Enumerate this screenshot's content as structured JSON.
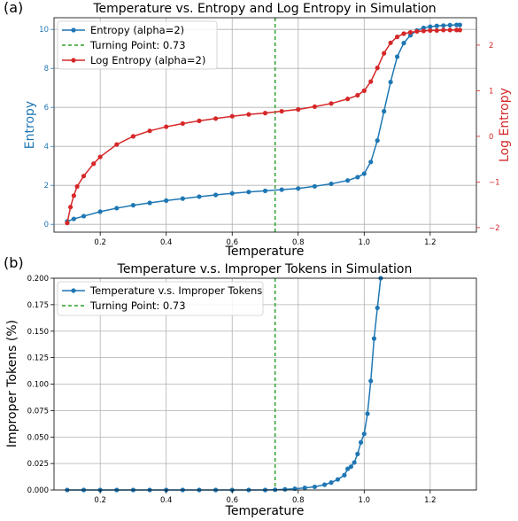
{
  "figure": {
    "panel_a_label": "(a)",
    "panel_b_label": "(b)"
  },
  "chart_data": [
    {
      "type": "line",
      "title": "Temperature vs. Entropy and Log Entropy in Simulation",
      "xlabel": "Temperature",
      "ylabel": "Entropy",
      "ylabel_right": "Log Entropy",
      "xlim": [
        0.06,
        1.34
      ],
      "ylim": [
        -0.4,
        10.6
      ],
      "ylim_right": [
        -2.1,
        2.6
      ],
      "xticks": [
        0.2,
        0.4,
        0.6,
        0.8,
        1.0,
        1.2
      ],
      "yticks": [
        0,
        2,
        4,
        6,
        8,
        10
      ],
      "yticks_right": [
        -2,
        -1,
        0,
        1,
        2
      ],
      "grid": true,
      "legend_position": "top-left",
      "vline": {
        "x": 0.73,
        "label": "Turning Point: 0.73",
        "color": "#2ca02c",
        "style": "dashed"
      },
      "colors": {
        "entropy": "#1f77b4",
        "log_entropy": "#d62728",
        "right_axis": "#d62728",
        "left_label": "#1f77b4"
      },
      "series": [
        {
          "name": "Entropy (alpha=2)",
          "axis": "left",
          "x": [
            0.1,
            0.12,
            0.15,
            0.2,
            0.25,
            0.3,
            0.35,
            0.4,
            0.45,
            0.5,
            0.55,
            0.6,
            0.65,
            0.7,
            0.75,
            0.8,
            0.85,
            0.9,
            0.95,
            0.98,
            1.0,
            1.02,
            1.04,
            1.06,
            1.08,
            1.1,
            1.12,
            1.14,
            1.16,
            1.18,
            1.2,
            1.22,
            1.24,
            1.26,
            1.28,
            1.29
          ],
          "y": [
            0.15,
            0.28,
            0.42,
            0.65,
            0.83,
            0.98,
            1.1,
            1.22,
            1.32,
            1.42,
            1.51,
            1.59,
            1.66,
            1.72,
            1.78,
            1.84,
            1.95,
            2.08,
            2.25,
            2.42,
            2.6,
            3.2,
            4.3,
            5.8,
            7.3,
            8.6,
            9.3,
            9.7,
            9.95,
            10.08,
            10.14,
            10.18,
            10.2,
            10.22,
            10.23,
            10.23
          ]
        },
        {
          "name": "Log Entropy (alpha=2)",
          "axis": "right",
          "x": [
            0.1,
            0.11,
            0.12,
            0.13,
            0.15,
            0.18,
            0.2,
            0.25,
            0.3,
            0.35,
            0.4,
            0.45,
            0.5,
            0.55,
            0.6,
            0.65,
            0.7,
            0.75,
            0.8,
            0.85,
            0.9,
            0.95,
            0.98,
            1.0,
            1.02,
            1.04,
            1.06,
            1.08,
            1.1,
            1.12,
            1.14,
            1.16,
            1.18,
            1.2,
            1.22,
            1.24,
            1.26,
            1.28,
            1.29
          ],
          "y": [
            -1.9,
            -1.55,
            -1.3,
            -1.1,
            -0.87,
            -0.6,
            -0.45,
            -0.18,
            0.0,
            0.12,
            0.21,
            0.28,
            0.34,
            0.39,
            0.44,
            0.48,
            0.51,
            0.55,
            0.59,
            0.65,
            0.72,
            0.82,
            0.9,
            1.0,
            1.2,
            1.5,
            1.82,
            2.05,
            2.18,
            2.25,
            2.28,
            2.3,
            2.31,
            2.32,
            2.32,
            2.33,
            2.33,
            2.33,
            2.33
          ]
        }
      ],
      "legend": [
        "Entropy (alpha=2)",
        "Turning Point: 0.73",
        "Log Entropy (alpha=2)"
      ]
    },
    {
      "type": "line",
      "title": "Temperature v.s. Improper Tokens in Simulation",
      "xlabel": "Temperature",
      "ylabel": "Improper Tokens (%)",
      "xlim": [
        0.06,
        1.34
      ],
      "ylim": [
        0.0,
        0.2
      ],
      "xticks": [
        0.2,
        0.4,
        0.6,
        0.8,
        1.0,
        1.2
      ],
      "yticks": [
        0.0,
        0.025,
        0.05,
        0.075,
        0.1,
        0.125,
        0.15,
        0.175,
        0.2
      ],
      "ytick_labels": [
        "0.000",
        "0.025",
        "0.050",
        "0.075",
        "0.100",
        "0.125",
        "0.150",
        "0.175",
        "0.200"
      ],
      "grid": true,
      "legend_position": "top-left",
      "vline": {
        "x": 0.73,
        "label": "Turning Point: 0.73",
        "color": "#2ca02c",
        "style": "dashed"
      },
      "colors": {
        "series": "#1f77b4"
      },
      "series": [
        {
          "name": "Temperature v.s. Improper Tokens",
          "x": [
            0.1,
            0.15,
            0.2,
            0.25,
            0.3,
            0.35,
            0.4,
            0.45,
            0.5,
            0.55,
            0.6,
            0.65,
            0.7,
            0.73,
            0.76,
            0.79,
            0.82,
            0.85,
            0.88,
            0.9,
            0.92,
            0.94,
            0.95,
            0.96,
            0.97,
            0.98,
            0.99,
            1.0,
            1.01,
            1.02,
            1.03,
            1.04,
            1.05
          ],
          "y": [
            0.0,
            0.0,
            0.0,
            0.0,
            0.0,
            0.0,
            0.0,
            0.0,
            0.0,
            0.0,
            0.0,
            0.0,
            0.0,
            0.0002,
            0.0006,
            0.0012,
            0.002,
            0.003,
            0.005,
            0.007,
            0.01,
            0.014,
            0.02,
            0.022,
            0.026,
            0.034,
            0.045,
            0.053,
            0.072,
            0.103,
            0.143,
            0.172,
            0.2
          ]
        }
      ],
      "legend": [
        "Temperature v.s. Improper Tokens",
        "Turning Point: 0.73"
      ]
    }
  ]
}
